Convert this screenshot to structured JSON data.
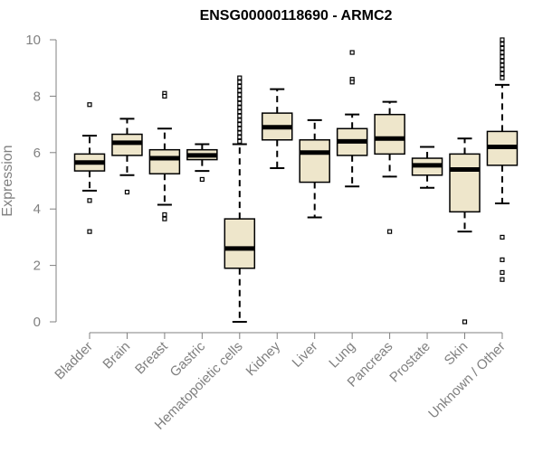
{
  "chart_data": {
    "type": "box",
    "title": "ENSG00000118690 - ARMC2",
    "xlabel": "",
    "ylabel": "Expression",
    "ylim": [
      0,
      10
    ],
    "yticks": [
      "0",
      "2",
      "4",
      "6",
      "8",
      "10"
    ],
    "grid": false,
    "colors": {
      "box_fill": "#eee6cb",
      "stroke": "#000000",
      "axis": "#808080",
      "tick_label": "#808080"
    },
    "categories": [
      "Bladder",
      "Brain",
      "Breast",
      "Gastric",
      "Hematopoietic cells",
      "Kidney",
      "Liver",
      "Lung",
      "Pancreas",
      "Prostate",
      "Skin",
      "Unknown / Other"
    ],
    "boxes": [
      {
        "category": "Bladder",
        "whisker_low": 4.65,
        "q1": 5.35,
        "median": 5.65,
        "q3": 5.95,
        "whisker_high": 6.6,
        "outliers": [
          7.7,
          4.3,
          3.2
        ]
      },
      {
        "category": "Brain",
        "whisker_low": 5.2,
        "q1": 5.9,
        "median": 6.35,
        "q3": 6.65,
        "whisker_high": 7.2,
        "outliers": [
          4.6
        ]
      },
      {
        "category": "Breast",
        "whisker_low": 4.15,
        "q1": 5.25,
        "median": 5.8,
        "q3": 6.1,
        "whisker_high": 6.85,
        "outliers": [
          8.1,
          8.0,
          3.8,
          3.65
        ]
      },
      {
        "category": "Gastric",
        "whisker_low": 5.35,
        "q1": 5.75,
        "median": 5.9,
        "q3": 6.1,
        "whisker_high": 6.3,
        "outliers": [
          5.05
        ]
      },
      {
        "category": "Hematopoietic cells",
        "whisker_low": 0.0,
        "q1": 1.9,
        "median": 2.6,
        "q3": 3.65,
        "whisker_high": 6.3,
        "outliers": [
          8.65,
          8.5,
          8.35,
          8.2,
          8.05,
          7.9,
          7.75,
          7.6,
          7.45,
          7.3,
          7.15,
          7.0,
          6.85,
          6.7,
          6.55,
          6.4
        ]
      },
      {
        "category": "Kidney",
        "whisker_low": 5.45,
        "q1": 6.45,
        "median": 6.9,
        "q3": 7.4,
        "whisker_high": 8.25,
        "outliers": []
      },
      {
        "category": "Liver",
        "whisker_low": 3.7,
        "q1": 4.95,
        "median": 6.0,
        "q3": 6.45,
        "whisker_high": 7.15,
        "outliers": []
      },
      {
        "category": "Lung",
        "whisker_low": 4.8,
        "q1": 5.9,
        "median": 6.4,
        "q3": 6.85,
        "whisker_high": 7.35,
        "outliers": [
          9.55,
          8.6,
          8.5
        ]
      },
      {
        "category": "Pancreas",
        "whisker_low": 5.15,
        "q1": 5.95,
        "median": 6.5,
        "q3": 7.35,
        "whisker_high": 7.8,
        "outliers": [
          3.2
        ]
      },
      {
        "category": "Prostate",
        "whisker_low": 4.75,
        "q1": 5.2,
        "median": 5.55,
        "q3": 5.8,
        "whisker_high": 6.2,
        "outliers": []
      },
      {
        "category": "Skin",
        "whisker_low": 3.2,
        "q1": 3.9,
        "median": 5.4,
        "q3": 5.95,
        "whisker_high": 6.5,
        "outliers": [
          0.0
        ]
      },
      {
        "category": "Unknown / Other",
        "whisker_low": 4.2,
        "q1": 5.55,
        "median": 6.2,
        "q3": 6.75,
        "whisker_high": 8.4,
        "outliers": [
          10.0,
          9.85,
          9.7,
          9.55,
          9.4,
          9.25,
          9.1,
          8.95,
          8.8,
          8.65,
          3.0,
          2.2,
          1.75,
          1.5
        ]
      }
    ]
  }
}
